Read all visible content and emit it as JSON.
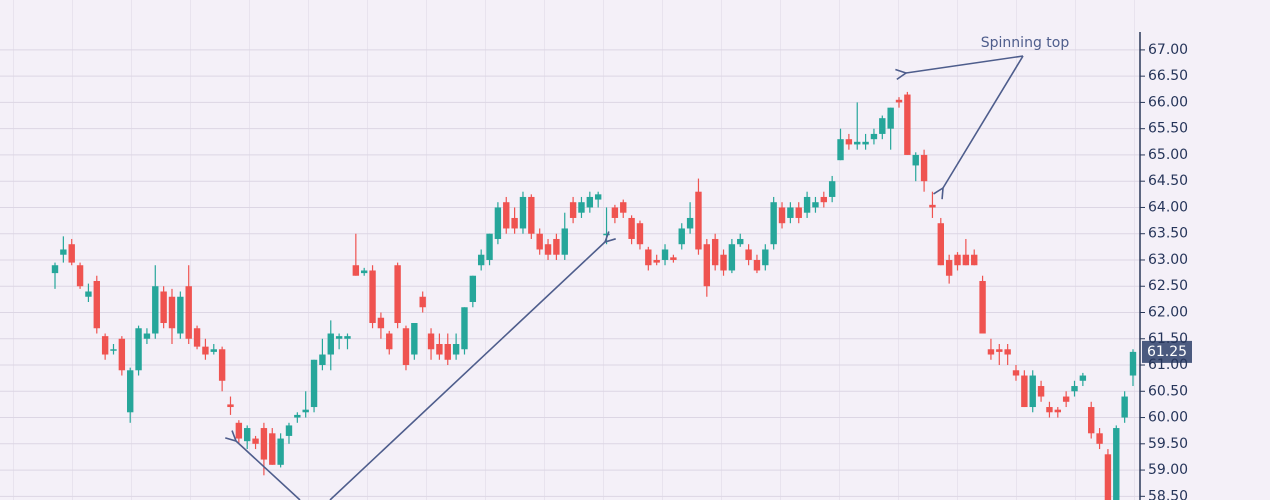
{
  "chart_data": {
    "type": "candlestick",
    "open": [
      62.75,
      63.1,
      63.3,
      62.9,
      62.3,
      62.6,
      61.55,
      61.3,
      61.5,
      60.1,
      60.9,
      61.5,
      61.6,
      62.4,
      62.3,
      61.6,
      62.5,
      61.7,
      61.35,
      61.25,
      61.3,
      60.25,
      59.9,
      59.55,
      59.6,
      59.8,
      59.7,
      59.1,
      59.65,
      60.0,
      60.1,
      60.2,
      61.0,
      61.2,
      61.5,
      61.5,
      62.9,
      62.75,
      62.8,
      61.9,
      61.6,
      62.9,
      61.7,
      61.2,
      62.3,
      61.6,
      61.4,
      61.4,
      61.2,
      61.3,
      62.2,
      62.9,
      63.0,
      63.4,
      64.1,
      63.8,
      63.6,
      64.2,
      63.5,
      63.3,
      63.4,
      63.1,
      64.1,
      63.9,
      64.0,
      64.15,
      63.5,
      64.0,
      64.1,
      63.8,
      63.7,
      63.2,
      63.0,
      63.0,
      63.05,
      63.3,
      63.6,
      64.3,
      63.3,
      63.4,
      63.1,
      62.8,
      63.3,
      63.2,
      63.0,
      62.9,
      63.3,
      64.0,
      63.8,
      64.0,
      63.9,
      64.0,
      64.2,
      64.2,
      64.9,
      65.3,
      65.2,
      65.2,
      65.3,
      65.4,
      65.5,
      66.05,
      66.15,
      64.8,
      65.0,
      64.05,
      63.7,
      63.0,
      63.1,
      63.1,
      63.1,
      62.6,
      61.3,
      61.3,
      61.3,
      60.9,
      60.8,
      60.2,
      60.6,
      60.2,
      60.15,
      60.4,
      60.5,
      60.7,
      60.2,
      59.7,
      59.3,
      58.4,
      60.0,
      60.8
    ],
    "high": [
      62.95,
      63.45,
      63.4,
      62.95,
      62.55,
      62.7,
      61.6,
      61.4,
      61.55,
      60.95,
      61.75,
      61.7,
      62.9,
      62.5,
      62.45,
      62.4,
      62.9,
      61.75,
      61.5,
      61.4,
      61.35,
      60.4,
      59.95,
      59.85,
      59.65,
      59.9,
      59.8,
      59.7,
      59.9,
      60.1,
      60.5,
      61.1,
      61.5,
      61.85,
      61.6,
      61.6,
      63.5,
      62.85,
      62.9,
      62.0,
      61.65,
      62.95,
      61.75,
      61.8,
      62.4,
      61.7,
      61.6,
      61.6,
      61.6,
      62.1,
      62.7,
      63.2,
      63.5,
      64.1,
      64.2,
      64.0,
      64.3,
      64.25,
      63.6,
      63.4,
      63.5,
      63.9,
      64.2,
      64.2,
      64.3,
      64.3,
      64.0,
      64.05,
      64.15,
      63.85,
      63.75,
      63.25,
      63.1,
      63.3,
      63.1,
      63.7,
      64.1,
      64.55,
      63.4,
      63.5,
      63.2,
      63.4,
      63.5,
      63.3,
      63.1,
      63.3,
      64.2,
      64.1,
      64.1,
      64.1,
      64.3,
      64.2,
      64.3,
      64.6,
      65.5,
      65.4,
      66.0,
      65.4,
      65.5,
      65.75,
      65.9,
      66.1,
      66.2,
      65.05,
      65.1,
      64.3,
      63.8,
      63.1,
      63.15,
      63.4,
      63.2,
      62.7,
      61.5,
      61.4,
      61.4,
      61.0,
      60.9,
      60.9,
      60.7,
      60.3,
      60.2,
      60.5,
      60.7,
      60.85,
      60.3,
      59.8,
      59.4,
      59.85,
      60.5,
      61.3
    ],
    "low": [
      62.45,
      62.95,
      62.9,
      62.45,
      62.2,
      61.6,
      61.1,
      61.2,
      60.8,
      59.9,
      60.8,
      61.4,
      61.5,
      61.7,
      61.4,
      61.5,
      61.4,
      61.3,
      61.1,
      61.2,
      60.5,
      60.05,
      59.5,
      59.4,
      59.4,
      58.9,
      59.1,
      59.05,
      59.5,
      59.9,
      60.0,
      60.1,
      60.9,
      60.9,
      61.3,
      61.3,
      62.7,
      62.7,
      61.7,
      61.5,
      61.2,
      61.7,
      60.9,
      61.1,
      62.0,
      61.1,
      61.1,
      61.0,
      61.1,
      61.2,
      62.1,
      62.8,
      62.9,
      63.3,
      63.5,
      63.5,
      63.5,
      63.4,
      63.1,
      63.0,
      63.0,
      63.0,
      63.7,
      63.8,
      63.9,
      64.0,
      63.3,
      63.7,
      63.8,
      63.3,
      63.2,
      62.8,
      62.9,
      62.9,
      62.95,
      63.2,
      63.5,
      63.1,
      62.3,
      62.8,
      62.7,
      62.75,
      63.25,
      62.9,
      62.75,
      62.8,
      63.2,
      63.6,
      63.7,
      63.7,
      63.8,
      63.9,
      64.0,
      64.1,
      64.9,
      65.1,
      65.1,
      65.1,
      65.2,
      65.3,
      65.1,
      65.9,
      65.0,
      64.5,
      64.3,
      63.8,
      62.9,
      62.55,
      62.8,
      62.9,
      62.9,
      61.6,
      61.1,
      61.0,
      61.0,
      60.7,
      60.2,
      60.1,
      60.3,
      60.0,
      60.0,
      60.2,
      60.4,
      60.6,
      59.6,
      59.4,
      58.3,
      58.3,
      59.9,
      60.6
    ],
    "close": [
      62.9,
      63.2,
      62.95,
      62.5,
      62.4,
      61.7,
      61.2,
      61.3,
      60.9,
      60.9,
      61.7,
      61.6,
      62.5,
      61.8,
      61.7,
      62.3,
      61.5,
      61.35,
      61.2,
      61.3,
      60.7,
      60.2,
      59.6,
      59.8,
      59.5,
      59.2,
      59.1,
      59.6,
      59.85,
      60.05,
      60.15,
      61.1,
      61.2,
      61.6,
      61.55,
      61.55,
      62.7,
      62.8,
      61.8,
      61.7,
      61.3,
      61.8,
      61.0,
      61.8,
      62.1,
      61.3,
      61.2,
      61.1,
      61.4,
      62.1,
      62.7,
      63.1,
      63.5,
      64.0,
      63.6,
      63.6,
      64.2,
      63.5,
      63.2,
      63.1,
      63.1,
      63.6,
      63.8,
      64.1,
      64.2,
      64.25,
      63.5,
      63.8,
      63.9,
      63.4,
      63.3,
      62.9,
      62.95,
      63.2,
      63.0,
      63.6,
      63.8,
      63.2,
      62.5,
      62.9,
      62.8,
      63.3,
      63.4,
      63.0,
      62.8,
      63.2,
      64.1,
      63.7,
      64.0,
      63.8,
      64.2,
      64.1,
      64.1,
      64.5,
      65.3,
      65.2,
      65.25,
      65.25,
      65.4,
      65.7,
      65.9,
      66.0,
      65.0,
      65.0,
      64.5,
      64.0,
      62.9,
      62.7,
      62.9,
      62.9,
      62.9,
      61.6,
      61.2,
      61.25,
      61.2,
      60.8,
      60.2,
      60.8,
      60.4,
      60.1,
      60.1,
      60.3,
      60.6,
      60.8,
      59.7,
      59.5,
      58.4,
      59.8,
      60.4,
      61.25
    ],
    "up_color": "#26a69a",
    "down_color": "#ef5350",
    "ylim": [
      58.43,
      67.95
    ],
    "yticks": [
      {
        "value": 58.5,
        "label": "58.50"
      },
      {
        "value": 59,
        "label": "59.00"
      },
      {
        "value": 59.5,
        "label": "59.50"
      },
      {
        "value": 60,
        "label": "60.00"
      },
      {
        "value": 60.5,
        "label": "60.50"
      },
      {
        "value": 61,
        "label": "61.00"
      },
      {
        "value": 61.5,
        "label": "61.50"
      },
      {
        "value": 62,
        "label": "62.00"
      },
      {
        "value": 62.5,
        "label": "62.50"
      },
      {
        "value": 63,
        "label": "63.00"
      },
      {
        "value": 63.5,
        "label": "63.50"
      },
      {
        "value": 64,
        "label": "64.00"
      },
      {
        "value": 64.5,
        "label": "64.50"
      },
      {
        "value": 65,
        "label": "65.00"
      },
      {
        "value": 65.5,
        "label": "65.50"
      },
      {
        "value": 66,
        "label": "66.00"
      },
      {
        "value": 66.5,
        "label": "66.50"
      },
      {
        "value": 67,
        "label": "67.00"
      }
    ],
    "grid": true,
    "last_price": 61.25,
    "annotation": "Spinning top"
  }
}
